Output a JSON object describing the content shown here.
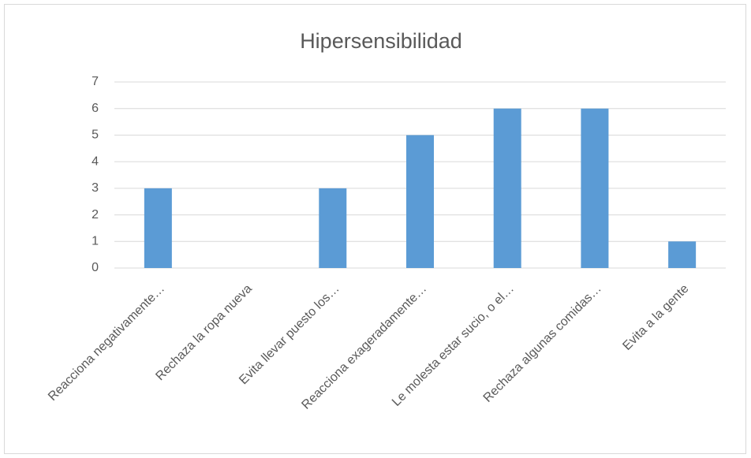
{
  "chart_data": {
    "type": "bar",
    "title": "Hipersensibilidad",
    "categories": [
      "Reacciona negativamente…",
      "Rechaza la ropa nueva",
      "Evita llevar puesto los…",
      "Reacciona exageradamente…",
      "Le molesta estar sucio, o el…",
      "Rechaza algunas comidas…",
      "Evita a la gente"
    ],
    "values": [
      3,
      0,
      3,
      5,
      6,
      6,
      1
    ],
    "color": "#5b9bd5",
    "ylim": [
      0,
      7
    ],
    "yticks": [
      0,
      1,
      2,
      3,
      4,
      5,
      6,
      7
    ],
    "grid": true
  }
}
